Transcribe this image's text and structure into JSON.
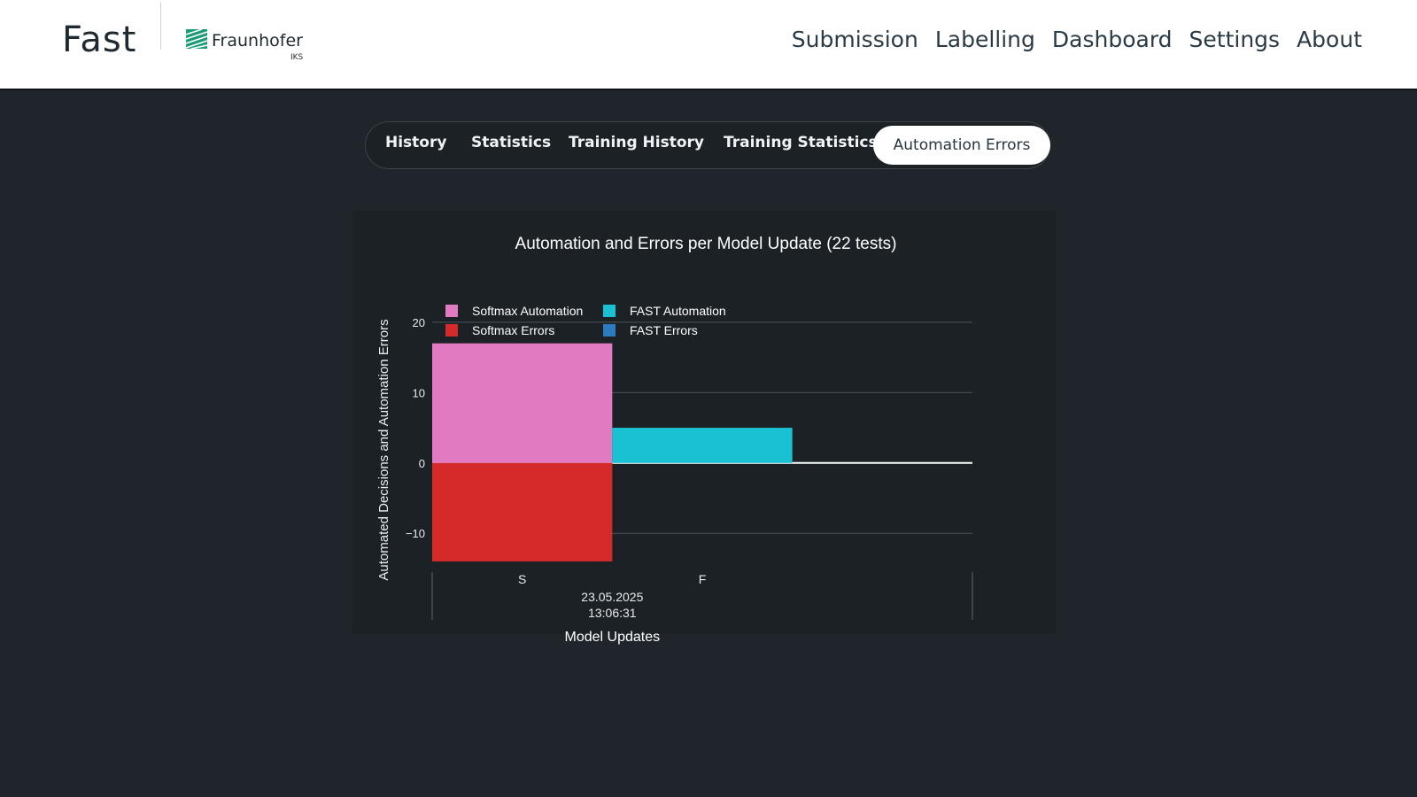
{
  "brand": {
    "logo_text": "Fast",
    "partner_name": "Fraunhofer",
    "partner_sub": "IKS"
  },
  "nav": [
    "Submission",
    "Labelling",
    "Dashboard",
    "Settings",
    "About"
  ],
  "tabs": [
    {
      "label": "History",
      "active": false
    },
    {
      "label": "Statistics",
      "active": false
    },
    {
      "label": "Training History",
      "active": false
    },
    {
      "label": "Training Statistics",
      "active": false
    },
    {
      "label": "Automation Errors",
      "active": true
    }
  ],
  "colors": {
    "softmax_automation": "#e17ac1",
    "softmax_errors": "#d42a2a",
    "fast_automation": "#18c2d2",
    "fast_errors": "#2a7bbf",
    "background": "#20252b",
    "teal": "#1a9aa0"
  },
  "chart_data": {
    "type": "bar",
    "title": "Automation and Errors per Model Update (22 tests)",
    "xlabel": "Model Updates",
    "ylabel": "Automated Decisions and Automation Errors",
    "categories": [
      "S",
      "F"
    ],
    "group_label": "23.05.2025\n13:06:31",
    "series": [
      {
        "name": "Softmax Automation",
        "color": "#e17ac1",
        "values": [
          17,
          0
        ]
      },
      {
        "name": "Softmax Errors",
        "color": "#d42a2a",
        "values": [
          -14,
          0
        ]
      },
      {
        "name": "FAST Automation",
        "color": "#18c2d2",
        "values": [
          0,
          5
        ]
      },
      {
        "name": "FAST Errors",
        "color": "#2a7bbf",
        "values": [
          0,
          0
        ]
      }
    ],
    "yticks": [
      20,
      10,
      0,
      -10
    ],
    "ytick_labels": [
      "20",
      "10",
      "0",
      "−10"
    ],
    "ylim": [
      -14.5,
      22
    ],
    "grid": true,
    "legend_position": "top-left"
  }
}
